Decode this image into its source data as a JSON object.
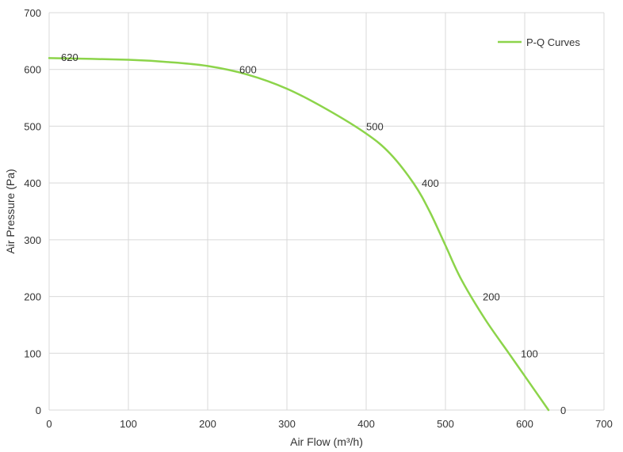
{
  "chart_data": {
    "type": "line",
    "xlabel": "Air Flow  (m³/h)",
    "ylabel": "Air Pressure  (Pa)",
    "xlim": [
      0,
      700
    ],
    "ylim": [
      0,
      700
    ],
    "x_ticks": [
      0,
      100,
      200,
      300,
      400,
      500,
      600,
      700
    ],
    "y_ticks": [
      0,
      100,
      200,
      300,
      400,
      500,
      600,
      700
    ],
    "grid": true,
    "legend_position": "top-right",
    "series": [
      {
        "name": "P-Q Curves",
        "color": "#8cd44a",
        "x": [
          0,
          100,
          150,
          200,
          250,
          300,
          350,
          400,
          430,
          460,
          480,
          500,
          520,
          550,
          580,
          600,
          630
        ],
        "y": [
          620,
          617,
          613,
          606,
          591,
          566,
          530,
          487,
          452,
          399,
          350,
          290,
          230,
          160,
          100,
          60,
          0
        ]
      }
    ],
    "annotations": [
      {
        "text": "620",
        "x": 15,
        "y": 615
      },
      {
        "text": "600",
        "x": 240,
        "y": 593
      },
      {
        "text": "500",
        "x": 400,
        "y": 493
      },
      {
        "text": "400",
        "x": 470,
        "y": 393
      },
      {
        "text": "200",
        "x": 547,
        "y": 193
      },
      {
        "text": "100",
        "x": 595,
        "y": 93
      },
      {
        "text": "0",
        "x": 645,
        "y": -7
      }
    ]
  }
}
